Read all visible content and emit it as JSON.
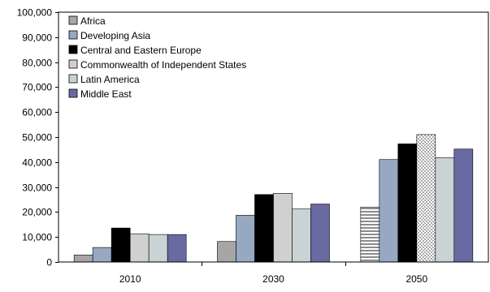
{
  "chart_data": {
    "type": "bar",
    "categories": [
      "2010",
      "2030",
      "2050"
    ],
    "ylim": [
      0,
      100000
    ],
    "yticks": [
      0,
      10000,
      20000,
      30000,
      40000,
      50000,
      60000,
      70000,
      80000,
      90000,
      100000
    ],
    "ytick_labels": [
      "0",
      "10,000",
      "20,000",
      "30,000",
      "40,000",
      "50,000",
      "60,000",
      "70,000",
      "80,000",
      "90,000",
      "100,000"
    ],
    "title": "",
    "xlabel": "",
    "ylabel": "",
    "grid": false,
    "legend_position": "top-left",
    "series": [
      {
        "name": "Africa",
        "values": [
          2800,
          8200,
          22000
        ],
        "fill": "#a6a6a6",
        "pattern": "solid"
      },
      {
        "name": "Developing Asia",
        "values": [
          5800,
          18700,
          41000
        ],
        "fill": "#96a8c2",
        "pattern": "solid"
      },
      {
        "name": "Central and Eastern Europe",
        "values": [
          13600,
          27000,
          47300
        ],
        "fill": "#000000",
        "pattern": "solid"
      },
      {
        "name": "Commonwealth of Independent States",
        "values": [
          11300,
          27500,
          51000
        ],
        "fill": "#d0d0d0",
        "pattern": "solid"
      },
      {
        "name": "Latin America",
        "values": [
          11000,
          21200,
          41700
        ],
        "fill": "#c9d3d6",
        "pattern": "solid"
      },
      {
        "name": "Middle East",
        "values": [
          11000,
          23200,
          45200
        ],
        "fill": "#6a6aa2",
        "pattern": "solid"
      }
    ],
    "notes": {
      "africa_2050_pattern": "horizontal-stripes",
      "cis_2050_pattern": "dotted"
    }
  }
}
